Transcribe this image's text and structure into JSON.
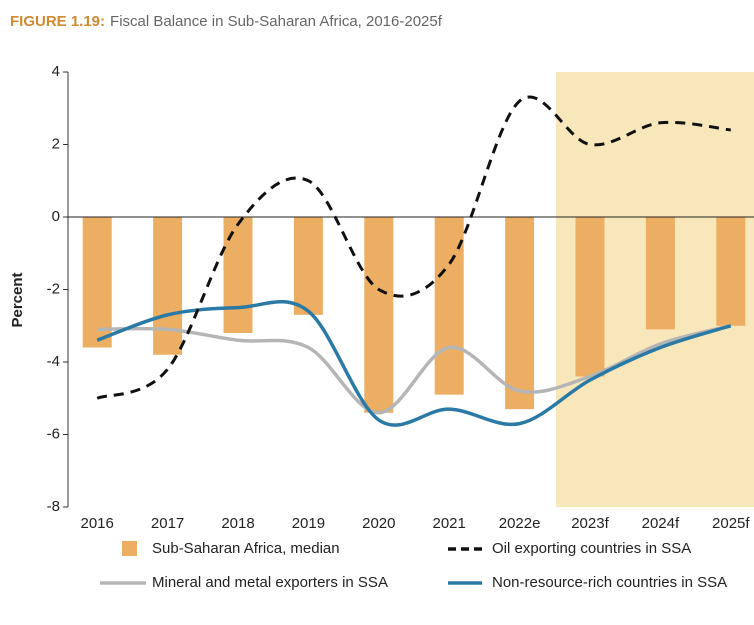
{
  "chart_data": {
    "type": "bar_line",
    "label": "FIGURE 1.19:",
    "title": "Fiscal Balance in Sub-Saharan Africa, 2016-2025f",
    "ylabel": "Percent",
    "categories": [
      "2016",
      "2017",
      "2018",
      "2019",
      "2020",
      "2021",
      "2022e",
      "2023f",
      "2024f",
      "2025f"
    ],
    "series": [
      {
        "name": "Sub-Saharan Africa, median",
        "kind": "bar",
        "color": "#ebae63",
        "values": [
          -3.6,
          -3.8,
          -3.2,
          -2.7,
          -5.4,
          -4.9,
          -5.3,
          -4.4,
          -3.1,
          -3.0
        ]
      },
      {
        "name": "Oil exporting countries in SSA",
        "kind": "line",
        "dashed": true,
        "color": "#111111",
        "values": [
          -5.0,
          -4.2,
          -0.2,
          1.0,
          -2.0,
          -1.3,
          3.2,
          2.0,
          2.6,
          2.4
        ]
      },
      {
        "name": "Mineral and metal exporters in SSA",
        "kind": "line",
        "color": "#b5b5b5",
        "values": [
          -3.1,
          -3.1,
          -3.4,
          -3.6,
          -5.4,
          -3.6,
          -4.8,
          -4.4,
          -3.5,
          -3.0
        ]
      },
      {
        "name": "Non-resource-rich countries in SSA",
        "kind": "line",
        "color": "#2a7aa5",
        "values": [
          -3.4,
          -2.7,
          -2.5,
          -2.6,
          -5.6,
          -5.3,
          -5.7,
          -4.5,
          -3.6,
          -3.0
        ]
      }
    ],
    "ylim": [
      -8,
      4
    ],
    "yticks": [
      -8,
      -6,
      -4,
      -2,
      0,
      2,
      4
    ]
  }
}
